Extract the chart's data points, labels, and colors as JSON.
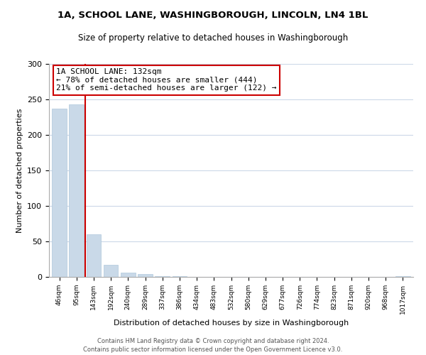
{
  "title": "1A, SCHOOL LANE, WASHINGBOROUGH, LINCOLN, LN4 1BL",
  "subtitle": "Size of property relative to detached houses in Washingborough",
  "xlabel": "Distribution of detached houses by size in Washingborough",
  "ylabel": "Number of detached properties",
  "bar_labels": [
    "46sqm",
    "95sqm",
    "143sqm",
    "192sqm",
    "240sqm",
    "289sqm",
    "337sqm",
    "386sqm",
    "434sqm",
    "483sqm",
    "532sqm",
    "580sqm",
    "629sqm",
    "677sqm",
    "726sqm",
    "774sqm",
    "823sqm",
    "871sqm",
    "920sqm",
    "968sqm",
    "1017sqm"
  ],
  "bar_values": [
    237,
    243,
    60,
    17,
    6,
    4,
    1,
    1,
    0,
    0,
    0,
    0,
    0,
    0,
    0,
    0,
    0,
    0,
    0,
    0,
    1
  ],
  "bar_color": "#c9d9e8",
  "bar_edge_color": "#afc8dc",
  "property_line_x": 1.5,
  "property_line_color": "#cc0000",
  "annotation_text": "1A SCHOOL LANE: 132sqm\n← 78% of detached houses are smaller (444)\n21% of semi-detached houses are larger (122) →",
  "annotation_box_color": "white",
  "annotation_box_edge": "#cc0000",
  "ylim": [
    0,
    300
  ],
  "yticks": [
    0,
    50,
    100,
    150,
    200,
    250,
    300
  ],
  "footer_line1": "Contains HM Land Registry data © Crown copyright and database right 2024.",
  "footer_line2": "Contains public sector information licensed under the Open Government Licence v3.0.",
  "bg_color": "white",
  "grid_color": "#ccd8e8"
}
